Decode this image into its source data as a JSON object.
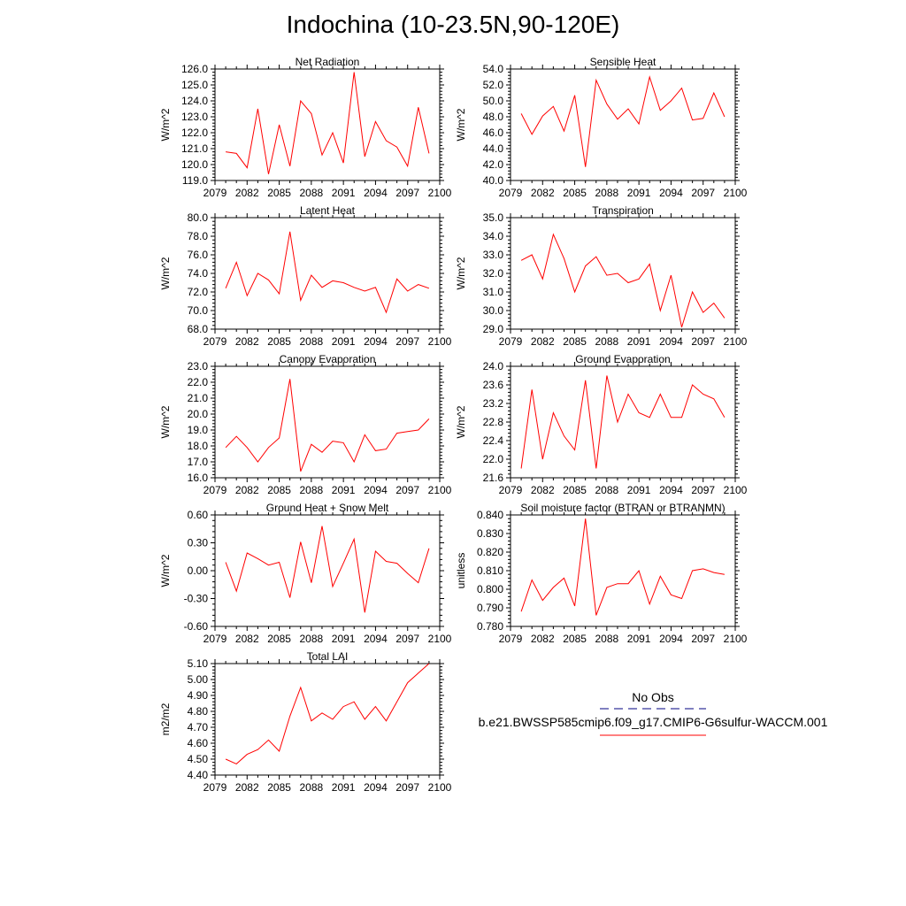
{
  "page_title": "Indochina (10-23.5N,90-120E)",
  "legend": {
    "entries": [
      {
        "label": "No Obs",
        "color": "#000080",
        "style": "dashed"
      },
      {
        "label": "b.e21.BWSSP585cmip6.f09_g17.CMIP6-G6sulfur-WACCM.001",
        "color": "#ff0000",
        "style": "solid"
      }
    ]
  },
  "chart_data": [
    {
      "type": "line",
      "title": "Net Radiation",
      "ylabel": "W/m^2",
      "xlabel": "",
      "ylim": [
        119.0,
        126.0
      ],
      "yticks": [
        119.0,
        120.0,
        121.0,
        122.0,
        123.0,
        124.0,
        125.0,
        126.0
      ],
      "ytick_labels": [
        "119.0",
        "120.0",
        "121.0",
        "122.0",
        "123.0",
        "124.0",
        "125.0",
        "126.0"
      ],
      "xlim": [
        2079,
        2100
      ],
      "xticks": [
        2079,
        2082,
        2085,
        2088,
        2091,
        2094,
        2097,
        2100
      ],
      "xtick_labels": [
        "2079",
        "2082",
        "2085",
        "2088",
        "2091",
        "2094",
        "2097",
        "2100"
      ],
      "x": [
        2080,
        2081,
        2082,
        2083,
        2084,
        2085,
        2086,
        2087,
        2088,
        2089,
        2090,
        2091,
        2092,
        2093,
        2094,
        2095,
        2096,
        2097,
        2098,
        2099
      ],
      "series": [
        {
          "color": "#ff0000",
          "values": [
            120.8,
            120.7,
            119.8,
            123.5,
            119.4,
            122.5,
            119.9,
            124.0,
            123.2,
            120.6,
            122.0,
            120.1,
            125.8,
            120.5,
            122.7,
            121.5,
            121.1,
            119.9,
            123.6,
            120.7
          ]
        }
      ]
    },
    {
      "type": "line",
      "title": "Sensible Heat",
      "ylabel": "W/m^2",
      "xlabel": "",
      "ylim": [
        40.0,
        54.0
      ],
      "yticks": [
        40.0,
        42.0,
        44.0,
        46.0,
        48.0,
        50.0,
        52.0,
        54.0
      ],
      "ytick_labels": [
        "40.0",
        "42.0",
        "44.0",
        "46.0",
        "48.0",
        "50.0",
        "52.0",
        "54.0"
      ],
      "xlim": [
        2079,
        2100
      ],
      "xticks": [
        2079,
        2082,
        2085,
        2088,
        2091,
        2094,
        2097,
        2100
      ],
      "xtick_labels": [
        "2079",
        "2082",
        "2085",
        "2088",
        "2091",
        "2094",
        "2097",
        "2100"
      ],
      "x": [
        2080,
        2081,
        2082,
        2083,
        2084,
        2085,
        2086,
        2087,
        2088,
        2089,
        2090,
        2091,
        2092,
        2093,
        2094,
        2095,
        2096,
        2097,
        2098,
        2099
      ],
      "series": [
        {
          "color": "#ff0000",
          "values": [
            48.4,
            45.8,
            48.1,
            49.3,
            46.2,
            50.7,
            41.7,
            52.6,
            49.6,
            47.7,
            49.0,
            47.1,
            53.0,
            48.8,
            50.0,
            51.6,
            47.6,
            47.8,
            51.0,
            48.0
          ]
        }
      ]
    },
    {
      "type": "line",
      "title": "Latent Heat",
      "ylabel": "W/m^2",
      "xlabel": "",
      "ylim": [
        68.0,
        80.0
      ],
      "yticks": [
        68.0,
        70.0,
        72.0,
        74.0,
        76.0,
        78.0,
        80.0
      ],
      "ytick_labels": [
        "68.0",
        "70.0",
        "72.0",
        "74.0",
        "76.0",
        "78.0",
        "80.0"
      ],
      "xlim": [
        2079,
        2100
      ],
      "xticks": [
        2079,
        2082,
        2085,
        2088,
        2091,
        2094,
        2097,
        2100
      ],
      "xtick_labels": [
        "2079",
        "2082",
        "2085",
        "2088",
        "2091",
        "2094",
        "2097",
        "2100"
      ],
      "x": [
        2080,
        2081,
        2082,
        2083,
        2084,
        2085,
        2086,
        2087,
        2088,
        2089,
        2090,
        2091,
        2092,
        2093,
        2094,
        2095,
        2096,
        2097,
        2098,
        2099
      ],
      "series": [
        {
          "color": "#ff0000",
          "values": [
            72.4,
            75.2,
            71.6,
            74.0,
            73.3,
            71.8,
            78.5,
            71.1,
            73.8,
            72.5,
            73.2,
            73.0,
            72.5,
            72.1,
            72.5,
            69.8,
            73.4,
            72.1,
            72.8,
            72.4
          ]
        }
      ]
    },
    {
      "type": "line",
      "title": "Transpiration",
      "ylabel": "W/m^2",
      "xlabel": "",
      "ylim": [
        29.0,
        35.0
      ],
      "yticks": [
        29.0,
        30.0,
        31.0,
        32.0,
        33.0,
        34.0,
        35.0
      ],
      "ytick_labels": [
        "29.0",
        "30.0",
        "31.0",
        "32.0",
        "33.0",
        "34.0",
        "35.0"
      ],
      "xlim": [
        2079,
        2100
      ],
      "xticks": [
        2079,
        2082,
        2085,
        2088,
        2091,
        2094,
        2097,
        2100
      ],
      "xtick_labels": [
        "2079",
        "2082",
        "2085",
        "2088",
        "2091",
        "2094",
        "2097",
        "2100"
      ],
      "x": [
        2080,
        2081,
        2082,
        2083,
        2084,
        2085,
        2086,
        2087,
        2088,
        2089,
        2090,
        2091,
        2092,
        2093,
        2094,
        2095,
        2096,
        2097,
        2098,
        2099
      ],
      "series": [
        {
          "color": "#ff0000",
          "values": [
            32.7,
            33.0,
            31.7,
            34.1,
            32.8,
            31.0,
            32.4,
            32.9,
            31.9,
            32.0,
            31.5,
            31.7,
            32.5,
            30.0,
            31.9,
            29.1,
            31.0,
            29.9,
            30.4,
            29.6
          ]
        }
      ]
    },
    {
      "type": "line",
      "title": "Canopy Evaporation",
      "ylabel": "W/m^2",
      "xlabel": "",
      "ylim": [
        16.0,
        23.0
      ],
      "yticks": [
        16.0,
        17.0,
        18.0,
        19.0,
        20.0,
        21.0,
        22.0,
        23.0
      ],
      "ytick_labels": [
        "16.0",
        "17.0",
        "18.0",
        "19.0",
        "20.0",
        "21.0",
        "22.0",
        "23.0"
      ],
      "xlim": [
        2079,
        2100
      ],
      "xticks": [
        2079,
        2082,
        2085,
        2088,
        2091,
        2094,
        2097,
        2100
      ],
      "xtick_labels": [
        "2079",
        "2082",
        "2085",
        "2088",
        "2091",
        "2094",
        "2097",
        "2100"
      ],
      "x": [
        2080,
        2081,
        2082,
        2083,
        2084,
        2085,
        2086,
        2087,
        2088,
        2089,
        2090,
        2091,
        2092,
        2093,
        2094,
        2095,
        2096,
        2097,
        2098,
        2099
      ],
      "series": [
        {
          "color": "#ff0000",
          "values": [
            17.9,
            18.6,
            17.9,
            17.0,
            17.9,
            18.5,
            22.2,
            16.4,
            18.1,
            17.6,
            18.3,
            18.2,
            17.0,
            18.7,
            17.7,
            17.8,
            18.8,
            18.9,
            19.0,
            19.7
          ]
        }
      ]
    },
    {
      "type": "line",
      "title": "Ground Evaporation",
      "ylabel": "W/m^2",
      "xlabel": "",
      "ylim": [
        21.6,
        24.0
      ],
      "yticks": [
        21.6,
        22.0,
        22.4,
        22.8,
        23.2,
        23.6,
        24.0
      ],
      "ytick_labels": [
        "21.6",
        "22.0",
        "22.4",
        "22.8",
        "23.2",
        "23.6",
        "24.0"
      ],
      "xlim": [
        2079,
        2100
      ],
      "xticks": [
        2079,
        2082,
        2085,
        2088,
        2091,
        2094,
        2097,
        2100
      ],
      "xtick_labels": [
        "2079",
        "2082",
        "2085",
        "2088",
        "2091",
        "2094",
        "2097",
        "2100"
      ],
      "x": [
        2080,
        2081,
        2082,
        2083,
        2084,
        2085,
        2086,
        2087,
        2088,
        2089,
        2090,
        2091,
        2092,
        2093,
        2094,
        2095,
        2096,
        2097,
        2098,
        2099
      ],
      "series": [
        {
          "color": "#ff0000",
          "values": [
            21.8,
            23.5,
            22.0,
            23.0,
            22.5,
            22.2,
            23.7,
            21.8,
            23.8,
            22.8,
            23.4,
            23.0,
            22.9,
            23.4,
            22.9,
            22.9,
            23.6,
            23.4,
            23.3,
            22.9
          ]
        }
      ]
    },
    {
      "type": "line",
      "title": "Ground Heat + Snow Melt",
      "ylabel": "W/m^2",
      "xlabel": "",
      "ylim": [
        -0.6,
        0.6
      ],
      "yticks": [
        -0.6,
        -0.3,
        0.0,
        0.3,
        0.6
      ],
      "ytick_labels": [
        "-0.60",
        "-0.30",
        "0.00",
        "0.30",
        "0.60"
      ],
      "xlim": [
        2079,
        2100
      ],
      "xticks": [
        2079,
        2082,
        2085,
        2088,
        2091,
        2094,
        2097,
        2100
      ],
      "xtick_labels": [
        "2079",
        "2082",
        "2085",
        "2088",
        "2091",
        "2094",
        "2097",
        "2100"
      ],
      "x": [
        2080,
        2081,
        2082,
        2083,
        2084,
        2085,
        2086,
        2087,
        2088,
        2089,
        2090,
        2091,
        2092,
        2093,
        2094,
        2095,
        2096,
        2097,
        2098,
        2099
      ],
      "series": [
        {
          "color": "#ff0000",
          "values": [
            0.09,
            -0.22,
            0.19,
            0.13,
            0.06,
            0.09,
            -0.29,
            0.31,
            -0.13,
            0.48,
            -0.17,
            0.08,
            0.34,
            -0.45,
            0.21,
            0.1,
            0.08,
            -0.03,
            -0.13,
            0.24
          ]
        }
      ]
    },
    {
      "type": "line",
      "title": "Soil moisture factor (BTRAN or BTRANMN)",
      "ylabel": "unitless",
      "xlabel": "",
      "ylim": [
        0.78,
        0.84
      ],
      "yticks": [
        0.78,
        0.79,
        0.8,
        0.81,
        0.82,
        0.83,
        0.84
      ],
      "ytick_labels": [
        "0.780",
        "0.790",
        "0.800",
        "0.810",
        "0.820",
        "0.830",
        "0.840"
      ],
      "xlim": [
        2079,
        2100
      ],
      "xticks": [
        2079,
        2082,
        2085,
        2088,
        2091,
        2094,
        2097,
        2100
      ],
      "xtick_labels": [
        "2079",
        "2082",
        "2085",
        "2088",
        "2091",
        "2094",
        "2097",
        "2100"
      ],
      "x": [
        2080,
        2081,
        2082,
        2083,
        2084,
        2085,
        2086,
        2087,
        2088,
        2089,
        2090,
        2091,
        2092,
        2093,
        2094,
        2095,
        2096,
        2097,
        2098,
        2099
      ],
      "series": [
        {
          "color": "#ff0000",
          "values": [
            0.788,
            0.805,
            0.794,
            0.801,
            0.806,
            0.791,
            0.838,
            0.786,
            0.801,
            0.803,
            0.803,
            0.81,
            0.792,
            0.807,
            0.797,
            0.795,
            0.81,
            0.811,
            0.809,
            0.808
          ]
        }
      ]
    },
    {
      "type": "line",
      "title": "Total LAI",
      "ylabel": "m2/m2",
      "xlabel": "",
      "ylim": [
        4.4,
        5.1
      ],
      "yticks": [
        4.4,
        4.5,
        4.6,
        4.7,
        4.8,
        4.9,
        5.0,
        5.1
      ],
      "ytick_labels": [
        "4.40",
        "4.50",
        "4.60",
        "4.70",
        "4.80",
        "4.90",
        "5.00",
        "5.10"
      ],
      "xlim": [
        2079,
        2100
      ],
      "xticks": [
        2079,
        2082,
        2085,
        2088,
        2091,
        2094,
        2097,
        2100
      ],
      "xtick_labels": [
        "2079",
        "2082",
        "2085",
        "2088",
        "2091",
        "2094",
        "2097",
        "2100"
      ],
      "x": [
        2080,
        2081,
        2082,
        2083,
        2084,
        2085,
        2086,
        2087,
        2088,
        2089,
        2090,
        2091,
        2092,
        2093,
        2094,
        2095,
        2096,
        2097,
        2098,
        2099
      ],
      "series": [
        {
          "color": "#ff0000",
          "values": [
            4.5,
            4.47,
            4.53,
            4.56,
            4.62,
            4.55,
            4.77,
            4.95,
            4.74,
            4.79,
            4.75,
            4.83,
            4.86,
            4.75,
            4.83,
            4.74,
            4.86,
            4.98,
            5.04,
            5.1
          ]
        }
      ]
    }
  ]
}
